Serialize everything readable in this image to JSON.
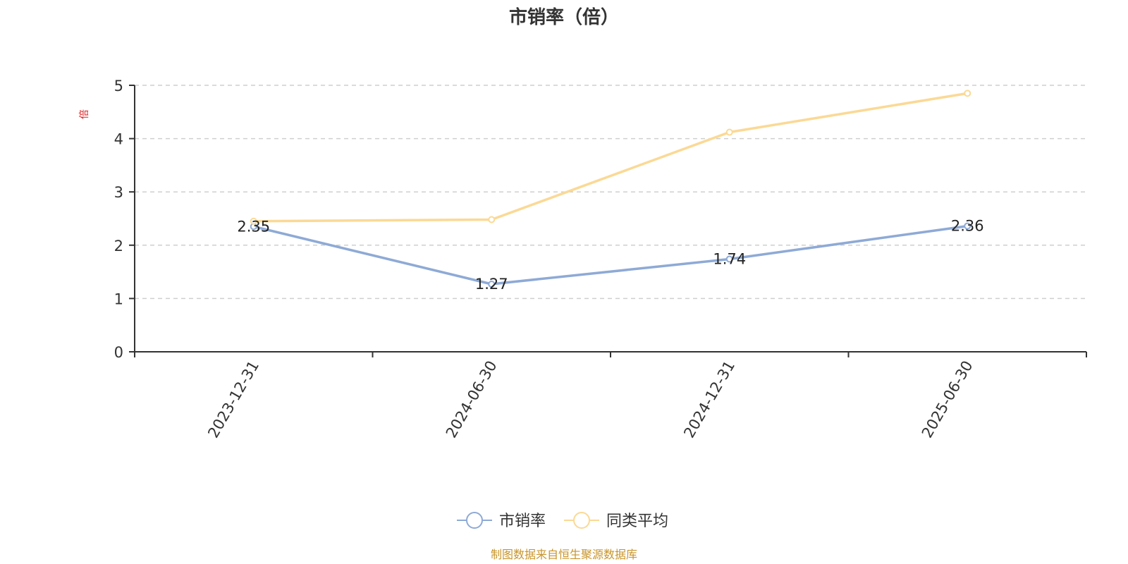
{
  "chart_data": {
    "type": "line",
    "title": "市销率（倍）",
    "ylabel": "倍",
    "categories": [
      "2023-12-31",
      "2024-06-30",
      "2024-12-31",
      "2025-06-30"
    ],
    "ylim": [
      0,
      5
    ],
    "yticks": [
      "0",
      "1",
      "2",
      "3",
      "4",
      "5"
    ],
    "grid": true,
    "legend_position": "bottom",
    "series": [
      {
        "name": "市销率",
        "color": "#8eaad6",
        "values": [
          2.35,
          1.27,
          1.74,
          2.36
        ],
        "labels": [
          "2.35",
          "1.27",
          "1.74",
          "2.36"
        ]
      },
      {
        "name": "同类平均",
        "color": "#fbd995",
        "values": [
          2.45,
          2.48,
          4.12,
          4.85
        ],
        "labels": []
      }
    ],
    "source": "制图数据来自恒生聚源数据库"
  }
}
